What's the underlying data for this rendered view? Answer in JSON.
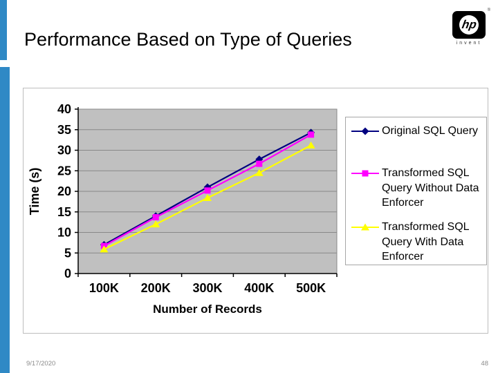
{
  "slide": {
    "title": "Performance Based on Type of Queries",
    "footer_date": "9/17/2020",
    "footer_page": "48",
    "accent_blue": "#2F89C5",
    "logo": {
      "brand": "hp",
      "tagline": "invent",
      "registered_mark": "®"
    }
  },
  "chart_data": {
    "type": "line",
    "title": "",
    "xlabel": "Number of Records",
    "ylabel": "Time (s)",
    "categories": [
      "100K",
      "200K",
      "300K",
      "400K",
      "500K"
    ],
    "ylim": [
      0,
      40
    ],
    "yticks": [
      0,
      5,
      10,
      15,
      20,
      25,
      30,
      35,
      40
    ],
    "grid": true,
    "legend_position": "right",
    "plot_bg": "#c0c0c0",
    "grid_color": "#888888",
    "axis_color": "#000000",
    "series": [
      {
        "name": "Original SQL Query",
        "marker": "diamond",
        "color": "#000080",
        "values": [
          7,
          14,
          21,
          27.8,
          34.3
        ]
      },
      {
        "name": "Transformed SQL Query Without Data Enforcer",
        "marker": "square",
        "color": "#FF00FF",
        "values": [
          6.7,
          13.7,
          20.2,
          26.7,
          33.8
        ]
      },
      {
        "name": "Transformed SQL Query With Data Enforcer",
        "marker": "triangle",
        "color": "#FFFF00",
        "values": [
          5.9,
          12,
          18.4,
          24.5,
          31.2
        ]
      }
    ]
  }
}
